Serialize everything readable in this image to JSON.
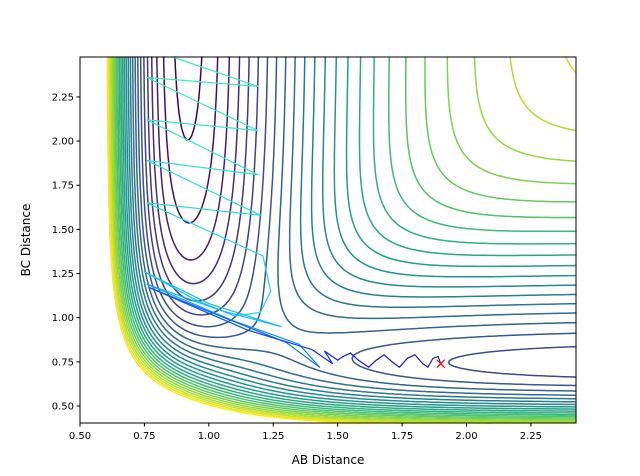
{
  "chart_data": {
    "type": "contour",
    "title": "",
    "xlabel": "AB Distance",
    "ylabel": "BC Distance",
    "xlim": [
      0.5,
      2.425
    ],
    "ylim": [
      0.404,
      2.476
    ],
    "xticks": [
      "0.50",
      "0.75",
      "1.00",
      "1.25",
      "1.50",
      "1.75",
      "2.00",
      "2.25"
    ],
    "yticks": [
      "0.50",
      "0.75",
      "1.00",
      "1.25",
      "1.50",
      "1.75",
      "2.00",
      "2.25"
    ],
    "grid": false,
    "colormap": [
      "#440154",
      "#482878",
      "#3e4989",
      "#31688e",
      "#26828e",
      "#1f9e89",
      "#35b779",
      "#6ece58",
      "#b5de2b",
      "#fde725"
    ],
    "surface": {
      "model": "LEPS",
      "AB": {
        "D": 141,
        "a": 2.22,
        "r0": 0.917
      },
      "BC": {
        "D": 109.5,
        "a": 1.94,
        "r0": 0.742
      },
      "AC": {
        "D": 141,
        "a": 2.22,
        "r0": 0.917
      },
      "levels": {
        "start": -138,
        "step": 5.5,
        "count": 26
      }
    },
    "trajectory": {
      "color_stops": [
        "#40f0b8",
        "#20d8e8",
        "#10b8ff",
        "#0a30ff",
        "#1010e0",
        "#2828b0"
      ],
      "points": [
        [
          0.86,
          2.476
        ],
        [
          1.19,
          2.31
        ],
        [
          0.76,
          2.36
        ],
        [
          1.19,
          2.06
        ],
        [
          0.76,
          2.12
        ],
        [
          1.19,
          1.81
        ],
        [
          0.76,
          1.89
        ],
        [
          1.2,
          1.58
        ],
        [
          0.76,
          1.65
        ],
        [
          1.21,
          1.35
        ],
        [
          1.24,
          1.15
        ],
        [
          1.2,
          1.03
        ],
        [
          1.1,
          1.01
        ],
        [
          0.95,
          1.1
        ],
        [
          0.75,
          1.26
        ],
        [
          1.0,
          1.08
        ],
        [
          1.28,
          0.95
        ],
        [
          1.05,
          1.04
        ],
        [
          0.76,
          1.19
        ],
        [
          1.1,
          0.98
        ],
        [
          1.35,
          0.85
        ],
        [
          1.43,
          0.72
        ],
        [
          1.3,
          0.86
        ],
        [
          0.77,
          1.17
        ],
        [
          1.15,
          0.93
        ],
        [
          1.4,
          0.82
        ],
        [
          1.48,
          0.74
        ],
        [
          1.45,
          0.81
        ],
        [
          1.5,
          0.76
        ],
        [
          1.52,
          0.78
        ],
        [
          1.55,
          0.8
        ],
        [
          1.58,
          0.76
        ],
        [
          1.62,
          0.72
        ],
        [
          1.65,
          0.76
        ],
        [
          1.68,
          0.79
        ],
        [
          1.72,
          0.74
        ],
        [
          1.74,
          0.72
        ],
        [
          1.77,
          0.77
        ],
        [
          1.8,
          0.79
        ],
        [
          1.83,
          0.74
        ],
        [
          1.85,
          0.72
        ],
        [
          1.87,
          0.77
        ],
        [
          1.89,
          0.78
        ],
        [
          1.9,
          0.74
        ]
      ]
    },
    "end_marker": {
      "x": 1.9,
      "y": 0.74,
      "symbol": "x",
      "color": "#ff0000"
    }
  }
}
